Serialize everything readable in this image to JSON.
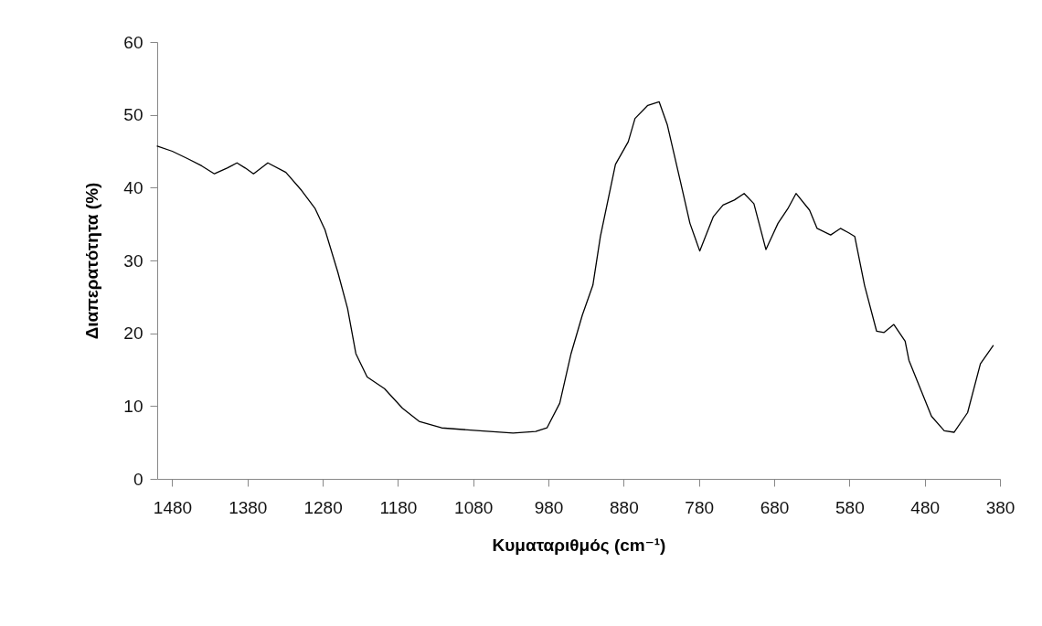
{
  "chart_data": {
    "type": "line",
    "xlabel": "Κυματαριθμός (cm⁻¹)",
    "ylabel": "Διαπερατότητα (%)",
    "xlim": [
      1500,
      380
    ],
    "xticks": [
      1480,
      1380,
      1280,
      1180,
      1080,
      980,
      880,
      780,
      680,
      580,
      480,
      380
    ],
    "ylim": [
      0,
      60
    ],
    "yticks": [
      0,
      10,
      20,
      30,
      40,
      50,
      60
    ],
    "grid": false,
    "marker": "none",
    "line_style": "solid",
    "series": [
      {
        "color": "#000000",
        "x": [
          1500,
          1480,
          1458,
          1441,
          1424,
          1407,
          1394,
          1383,
          1372,
          1353,
          1329,
          1308,
          1290,
          1277,
          1260,
          1247,
          1236,
          1221,
          1198,
          1174,
          1152,
          1122,
          1071,
          1027,
          997,
          982,
          965,
          950,
          935,
          921,
          911,
          891,
          874,
          865,
          848,
          833,
          822,
          805,
          792,
          779,
          761,
          748,
          733,
          720,
          707,
          691,
          675,
          662,
          651,
          633,
          623,
          605,
          592,
          581,
          573,
          560,
          544,
          534,
          521,
          506,
          501,
          471,
          454,
          441,
          423,
          406,
          389
        ],
        "values": [
          45.7,
          45.0,
          43.9,
          43.0,
          41.9,
          42.7,
          43.4,
          42.7,
          41.9,
          43.4,
          42.1,
          39.6,
          37.1,
          34.2,
          28.4,
          23.4,
          17.2,
          14.0,
          12.4,
          9.7,
          7.9,
          7.0,
          6.6,
          6.3,
          6.5,
          7.0,
          10.4,
          17.2,
          22.5,
          26.6,
          33.3,
          43.2,
          46.3,
          49.5,
          51.3,
          51.8,
          48.6,
          41.0,
          35.1,
          31.3,
          36.0,
          37.6,
          38.3,
          39.2,
          37.8,
          31.5,
          35.1,
          37.1,
          39.2,
          36.9,
          34.4,
          33.5,
          34.4,
          33.8,
          33.3,
          26.6,
          20.3,
          20.1,
          21.2,
          18.9,
          16.3,
          8.6,
          6.6,
          6.4,
          9.1,
          15.8,
          18.3
        ]
      }
    ]
  }
}
